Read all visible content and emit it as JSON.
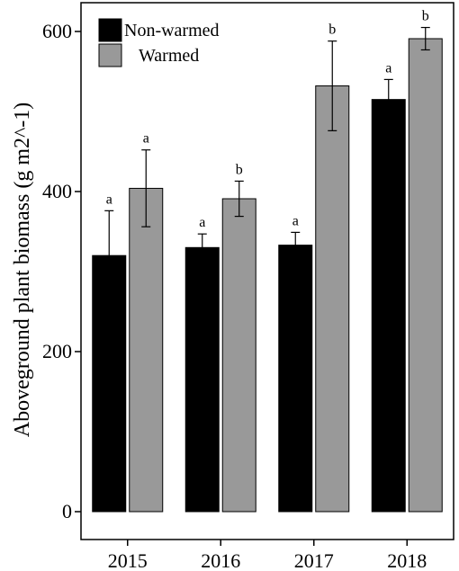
{
  "chart_data": {
    "type": "bar",
    "title": "",
    "xlabel": "",
    "ylabel": "Aboveground plant biomass (g m2^-1)",
    "categories": [
      "2015",
      "2016",
      "2017",
      "2018"
    ],
    "ylim": [
      0,
      600
    ],
    "yticks": [
      "0",
      "200",
      "400",
      "600"
    ],
    "grid": false,
    "legend_position": "top-left",
    "series": [
      {
        "name": "Non-warmed",
        "color": "#000000",
        "values": [
          320,
          330,
          333,
          515
        ],
        "errors": [
          56,
          17,
          16,
          25
        ],
        "letters": [
          "a",
          "a",
          "a",
          "a"
        ]
      },
      {
        "name": "Warmed",
        "color": "#999999",
        "values": [
          404,
          391,
          532,
          591
        ],
        "errors": [
          48,
          22,
          56,
          14
        ],
        "letters": [
          "a",
          "b",
          "b",
          "b"
        ]
      }
    ]
  }
}
